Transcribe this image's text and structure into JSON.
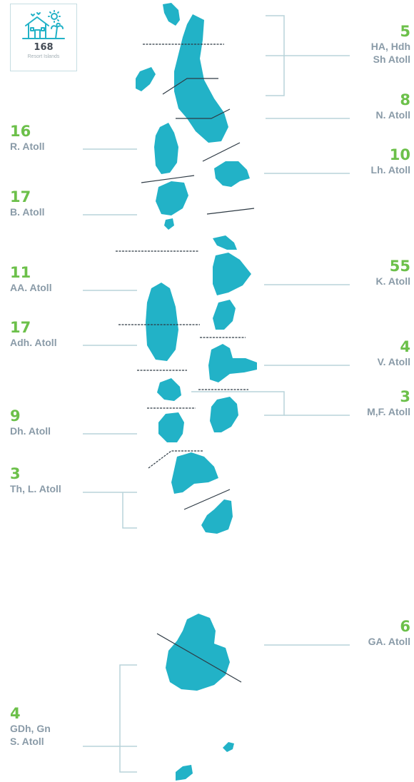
{
  "badge": {
    "count": "168",
    "caption": "Resort Islands",
    "icon": "beach-house-icon"
  },
  "colors": {
    "island": "#22b2c7",
    "accent_number": "#6cc04a",
    "label_text": "#8a9ba8",
    "leader_line": "#b8d4da"
  },
  "atolls": [
    {
      "id": "ha-hdh-sh",
      "count": "5",
      "name_lines": [
        "HA, Hdh",
        "Sh Atoll"
      ],
      "side": "right"
    },
    {
      "id": "n",
      "count": "8",
      "name_lines": [
        "N. Atoll"
      ],
      "side": "right"
    },
    {
      "id": "r",
      "count": "16",
      "name_lines": [
        "R. Atoll"
      ],
      "side": "left"
    },
    {
      "id": "lh",
      "count": "10",
      "name_lines": [
        "Lh. Atoll"
      ],
      "side": "right"
    },
    {
      "id": "b",
      "count": "17",
      "name_lines": [
        "B. Atoll"
      ],
      "side": "left"
    },
    {
      "id": "aa",
      "count": "11",
      "name_lines": [
        "AA. Atoll"
      ],
      "side": "left"
    },
    {
      "id": "k",
      "count": "55",
      "name_lines": [
        "K. Atoll"
      ],
      "side": "right"
    },
    {
      "id": "adh",
      "count": "17",
      "name_lines": [
        "Adh. Atoll"
      ],
      "side": "left"
    },
    {
      "id": "v",
      "count": "4",
      "name_lines": [
        "V. Atoll"
      ],
      "side": "right"
    },
    {
      "id": "mf",
      "count": "3",
      "name_lines": [
        "M,F. Atoll"
      ],
      "side": "right"
    },
    {
      "id": "dh",
      "count": "9",
      "name_lines": [
        "Dh. Atoll"
      ],
      "side": "left"
    },
    {
      "id": "th-l",
      "count": "3",
      "name_lines": [
        "Th, L. Atoll"
      ],
      "side": "left"
    },
    {
      "id": "ga",
      "count": "6",
      "name_lines": [
        "GA. Atoll"
      ],
      "side": "right"
    },
    {
      "id": "gdh-gn-s",
      "count": "4",
      "name_lines": [
        "GDh, Gn",
        "S. Atoll"
      ],
      "side": "left"
    }
  ]
}
